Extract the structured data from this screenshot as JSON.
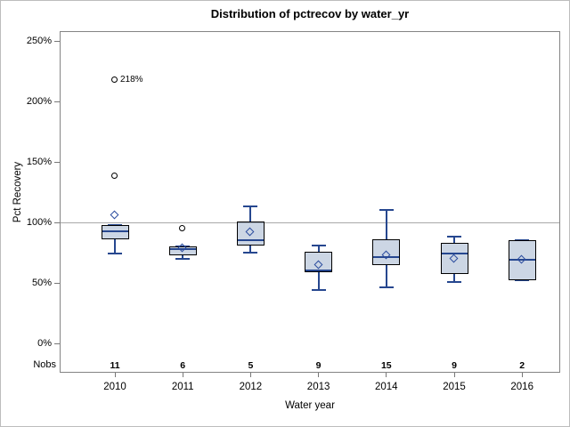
{
  "chart_data": {
    "type": "box",
    "title": "Distribution of pctrecov by water_yr",
    "xlabel": "Water year",
    "ylabel": "Pct Recovery",
    "nobs_label": "Nobs",
    "y_axis": {
      "min": 0,
      "max": 250,
      "step": 50,
      "unit": "%",
      "tick_labels": [
        "0%",
        "50%",
        "100%",
        "150%",
        "200%",
        "250%"
      ]
    },
    "reference_line": 100,
    "categories": [
      "2010",
      "2011",
      "2012",
      "2013",
      "2014",
      "2015",
      "2016"
    ],
    "boxes": [
      {
        "year": "2010",
        "nobs": 11,
        "whisker_low": 74,
        "q1": 86,
        "median": 93,
        "q3": 98,
        "whisker_high": 98,
        "mean": 106,
        "outliers": [
          {
            "value": 138
          },
          {
            "value": 218,
            "label": "218%"
          }
        ]
      },
      {
        "year": "2011",
        "nobs": 6,
        "whisker_low": 70,
        "q1": 73,
        "median": 78,
        "q3": 80,
        "whisker_high": 80,
        "mean": 79,
        "outliers": [
          {
            "value": 95
          }
        ]
      },
      {
        "year": "2012",
        "nobs": 5,
        "whisker_low": 75,
        "q1": 81,
        "median": 85,
        "q3": 101,
        "whisker_high": 113,
        "mean": 92,
        "outliers": []
      },
      {
        "year": "2013",
        "nobs": 9,
        "whisker_low": 44,
        "q1": 59,
        "median": 60,
        "q3": 76,
        "whisker_high": 81,
        "mean": 65,
        "outliers": []
      },
      {
        "year": "2014",
        "nobs": 15,
        "whisker_low": 46,
        "q1": 65,
        "median": 71,
        "q3": 86,
        "whisker_high": 110,
        "mean": 73,
        "outliers": []
      },
      {
        "year": "2015",
        "nobs": 9,
        "whisker_low": 51,
        "q1": 57,
        "median": 74,
        "q3": 83,
        "whisker_high": 88,
        "mean": 70,
        "outliers": []
      },
      {
        "year": "2016",
        "nobs": 2,
        "whisker_low": 52,
        "q1": 52,
        "median": 69,
        "q3": 85,
        "whisker_high": 85,
        "mean": 69,
        "outliers": []
      }
    ],
    "legend": null,
    "grid": false,
    "colors": {
      "box_fill": "rgba(141,163,195,0.45)",
      "box_fill_hex": "#ccd6e4",
      "box_border": "#000000",
      "whisker": "#26478f",
      "median": "#26478f",
      "mean_marker": "#2a4b9e",
      "outlier": "#000000",
      "reference_line": "#a8a8a8",
      "frame": "#848484",
      "tick": "#777777",
      "text": "#000000"
    }
  }
}
